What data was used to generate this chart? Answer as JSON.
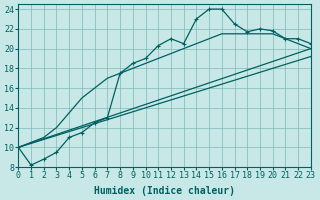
{
  "xlabel": "Humidex (Indice chaleur)",
  "bg_color": "#c8e8e8",
  "grid_color": "#80b8b8",
  "line_color": "#006060",
  "xlim": [
    0,
    23
  ],
  "ylim": [
    8,
    24.5
  ],
  "xticks": [
    0,
    1,
    2,
    3,
    4,
    5,
    6,
    7,
    8,
    9,
    10,
    11,
    12,
    13,
    14,
    15,
    16,
    17,
    18,
    19,
    20,
    21,
    22,
    23
  ],
  "yticks": [
    8,
    10,
    12,
    14,
    16,
    18,
    20,
    22,
    24
  ],
  "series1_x": [
    0,
    1,
    2,
    3,
    4,
    5,
    6,
    7,
    8,
    9,
    10,
    11,
    12,
    13,
    14,
    15,
    16,
    17,
    18,
    19,
    20,
    21,
    22,
    23
  ],
  "series1_y": [
    10,
    8.2,
    8.8,
    9.5,
    11,
    11.5,
    12.5,
    13,
    17.5,
    18.5,
    19,
    20.3,
    21,
    20.5,
    23,
    24,
    24,
    22.5,
    21.7,
    22,
    21.8,
    21,
    21,
    20.5
  ],
  "series2_x": [
    0,
    1,
    2,
    3,
    4,
    5,
    6,
    7,
    8,
    9,
    10,
    11,
    12,
    13,
    14,
    15,
    16,
    17,
    18,
    19,
    20,
    21,
    22,
    23
  ],
  "series2_y": [
    10,
    10.5,
    11,
    12,
    13.5,
    15,
    16,
    17,
    17.5,
    18,
    18.5,
    19,
    19.5,
    20,
    20.5,
    21,
    21.5,
    21.5,
    21.5,
    21.5,
    21.5,
    21,
    20.5,
    20
  ],
  "series3_x": [
    0,
    23
  ],
  "series3_y": [
    10,
    20
  ],
  "series4_x": [
    0,
    23
  ],
  "series4_y": [
    10,
    19.2
  ]
}
